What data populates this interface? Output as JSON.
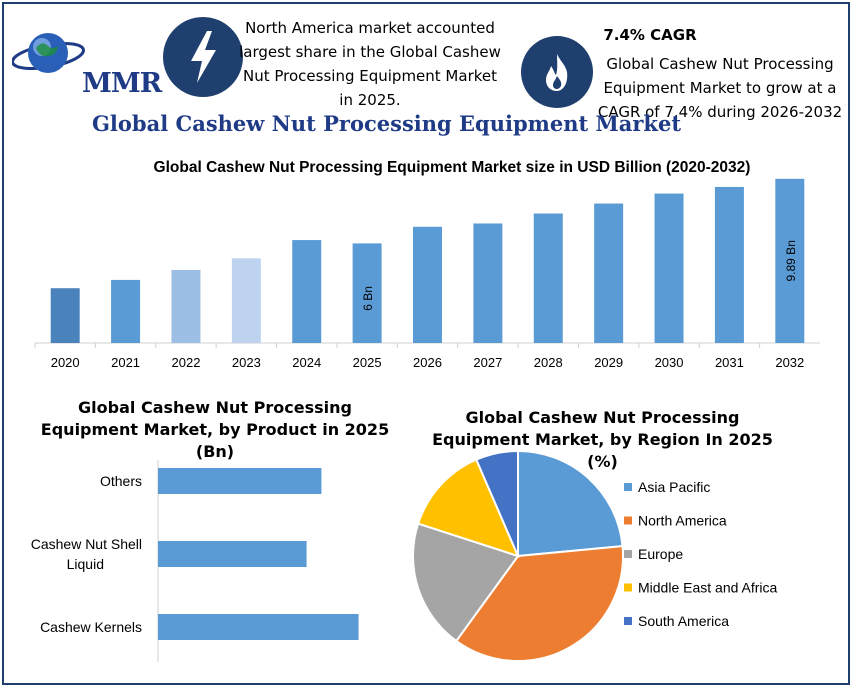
{
  "brand": {
    "logo_text": "MMR"
  },
  "info_left": {
    "text": "North America market accounted largest share in the Global Cashew Nut Processing Equipment Market in 2025."
  },
  "info_right": {
    "title": "7.4% CAGR",
    "text": "Global Cashew Nut Processing Equipment Market to grow at a CAGR of 7.4% during 2026-2032"
  },
  "icons": {
    "left": "lightning-icon",
    "right": "flame-icon",
    "logo": "globe-icon"
  },
  "main_title": "Global Cashew Nut Processing Equipment Market",
  "colors": {
    "brand_dark": "#1f3f6e",
    "title_blue": "#1f3b86",
    "bar_blue": "#5b9bd5"
  },
  "chart_data": [
    {
      "type": "bar",
      "title": "Global Cashew Nut Processing Equipment Market size in USD Billion (2020-2032)",
      "categories": [
        "2020",
        "2021",
        "2022",
        "2023",
        "2024",
        "2025",
        "2026",
        "2027",
        "2028",
        "2029",
        "2030",
        "2031",
        "2032"
      ],
      "values": [
        3.3,
        3.8,
        4.4,
        5.1,
        6.2,
        6.0,
        7.0,
        7.2,
        7.8,
        8.4,
        9.0,
        9.4,
        9.89
      ],
      "colors": [
        "#4a82bc",
        "#5b9bd5",
        "#9dbfe5",
        "#bdd3ef",
        "#5b9bd5",
        "#5b9bd5",
        "#5b9bd5",
        "#5b9bd5",
        "#5b9bd5",
        "#5b9bd5",
        "#5b9bd5",
        "#5b9bd5",
        "#5b9bd5"
      ],
      "data_labels": {
        "2025": "6 Bn",
        "2032": "9.89 Bn"
      },
      "ylim": [
        0,
        10.3
      ],
      "grid": false
    },
    {
      "type": "bar",
      "orientation": "horizontal",
      "title": "Global Cashew Nut Processing Equipment Market, by Product in 2025 (Bn)",
      "categories": [
        "Others",
        "Cashew Nut Shell Liquid",
        "Cashew Kernels"
      ],
      "values": [
        2.2,
        2.0,
        2.7
      ],
      "xlim": [
        0,
        3.5
      ],
      "color": "#5b9bd5"
    },
    {
      "type": "pie",
      "title": "Global Cashew Nut Processing Equipment Market, by Region In 2025 (%)",
      "labels": [
        "Asia Pacific",
        "North America",
        "Europe",
        "Middle East and Africa",
        "South America"
      ],
      "values": [
        23.5,
        36.5,
        20,
        13.5,
        6.5
      ],
      "colors": [
        "#5b9bd5",
        "#ed7d31",
        "#a5a5a5",
        "#ffc000",
        "#4472c4"
      ],
      "legend": "right"
    }
  ]
}
